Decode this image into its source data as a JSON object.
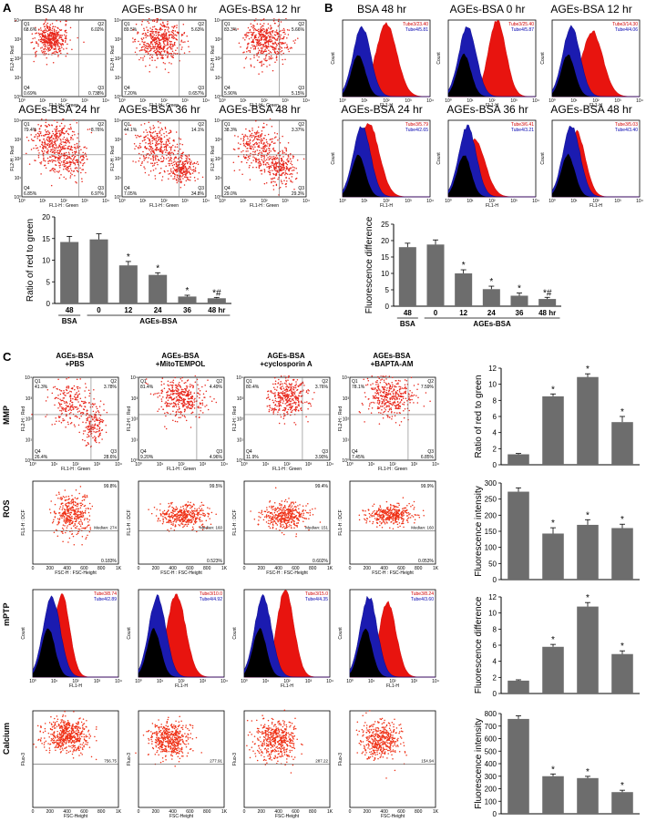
{
  "panel_a": {
    "label": "A",
    "plots": [
      {
        "title": "BSA 48 hr",
        "q1": "68.6%",
        "q2": "6.02%",
        "q3": "0.738%",
        "q4": "0.69%"
      },
      {
        "title": "AGEs-BSA 0 hr",
        "q1": "89.5%",
        "q2": "5.63%",
        "q3": "0.657%",
        "q4": "7.20%"
      },
      {
        "title": "AGEs-BSA 12 hr",
        "q1": "83.3%",
        "q2": "5.66%",
        "q3": "5.15%",
        "q4": "5.90%"
      },
      {
        "title": "AGEs-BSA 24 hr",
        "q1": "79.4%",
        "q2": "8.76%",
        "q3": "6.97%",
        "q4": "6.85%"
      },
      {
        "title": "AGEs-BSA 36 hr",
        "q1": "44.1%",
        "q2": "14.1%",
        "q3": "34.8%",
        "q4": "7.05%"
      },
      {
        "title": "AGEs-BSA 48 hr",
        "q1": "38.3%",
        "q2": "3.37%",
        "q3": "29.3%",
        "q4": "29.0%"
      }
    ],
    "xaxis": "FL1-H : Green",
    "yaxis": "FL2-H : Red"
  },
  "panel_b": {
    "label": "B",
    "plots": [
      {
        "title": "BSA 48 hr",
        "tube_a": "Tube3/23.40",
        "tube_b": "Tube4/5.81"
      },
      {
        "title": "AGEs-BSA 0 hr",
        "tube_a": "Tube3/25.40",
        "tube_b": "Tube4/5.87"
      },
      {
        "title": "AGEs-BSA 12 hr",
        "tube_a": "Tube3/14.30",
        "tube_b": "Tube4/4.06"
      },
      {
        "title": "AGEs-BSA 24 hr",
        "tube_a": "Tube3/5.79",
        "tube_b": "Tube4/2.65"
      },
      {
        "title": "AGEs-BSA 36 hr",
        "tube_a": "Tube3/6.41",
        "tube_b": "Tube4/3.21"
      },
      {
        "title": "AGEs-BSA 48 hr",
        "tube_a": "Tube3/5.03",
        "tube_b": "Tube4/3.40"
      }
    ],
    "xaxis": "FL1-H",
    "yaxis": "Count"
  },
  "panel_c": {
    "label": "C",
    "columns": [
      "AGEs-BSA\n+PBS",
      "AGEs-BSA\n+MitoTEMPOL",
      "AGEs-BSA\n+cyclosporin A",
      "AGEs-BSA\n+BAPTA-AM"
    ],
    "col_line1": [
      "AGEs-BSA",
      "AGEs-BSA",
      "AGEs-BSA",
      "AGEs-BSA"
    ],
    "col_line2": [
      "+PBS",
      "+MitoTEMPOL",
      "+cyclosporin A",
      "+BAPTA-AM"
    ],
    "rows": [
      "MMP",
      "ROS",
      "mPTP",
      "Calcium"
    ],
    "mmp": [
      {
        "q1": "41.3%",
        "q2": "3.78%",
        "q3": "28.6%",
        "q4": "26.4%"
      },
      {
        "q1": "81.4%",
        "q2": "4.49%",
        "q3": "4.96%",
        "q4": "9.20%"
      },
      {
        "q1": "80.4%",
        "q2": "3.76%",
        "q3": "3.90%",
        "q4": "11.9%"
      },
      {
        "q1": "78.1%",
        "q2": "7.59%",
        "q3": "6.85%",
        "q4": "7.45%"
      }
    ],
    "ros": [
      {
        "top": "99.8%",
        "bot": "0.183%",
        "median": "Median: 274"
      },
      {
        "top": "99.5%",
        "bot": "0.523%",
        "median": "Median: 160"
      },
      {
        "top": "99.4%",
        "bot": "0.602%",
        "median": "Median: 151"
      },
      {
        "top": "99.9%",
        "bot": "0.053%",
        "median": "Median: 160"
      }
    ],
    "mptp": [
      {
        "tube_a": "Tube3/8.74",
        "tube_b": "Tube4/2.89"
      },
      {
        "tube_a": "Tube3/10.0",
        "tube_b": "Tube4/4.92"
      },
      {
        "tube_a": "Tube3/15.0",
        "tube_b": "Tube4/4.35"
      },
      {
        "tube_a": "Tube3/8.24",
        "tube_b": "Tube4/3.60"
      }
    ],
    "calcium": [
      {
        "median": "756.75"
      },
      {
        "median": "277.91"
      },
      {
        "median": "287.22"
      },
      {
        "median": "154.94"
      }
    ],
    "scatter_x": "FSC-H : FSC-Height",
    "scatter_x2": "FSC-Height",
    "mmp_x": "FL1-H : Green",
    "mmp_y": "FL2-H : Red",
    "ros_y": "FL1-H : DCF",
    "hist_x": "FL1-H",
    "hist_y": "Count",
    "ca_y": "Fluo-3"
  },
  "chart_data": [
    {
      "type": "bar",
      "id": "a_bar",
      "categories": [
        "48",
        "0",
        "12",
        "24",
        "36",
        "48 hr"
      ],
      "values": [
        14.2,
        14.8,
        8.8,
        6.6,
        1.6,
        1.2
      ],
      "errors": [
        1.3,
        1.3,
        0.9,
        0.5,
        0.3,
        0.2
      ],
      "marks": [
        "",
        "",
        "*",
        "*",
        "*",
        "*#"
      ],
      "ylabel": "Ratio of red to green",
      "ylim": [
        0,
        20
      ],
      "yticks": [
        0,
        5,
        10,
        15,
        20
      ],
      "group_labels": [
        "BSA",
        "AGEs-BSA"
      ]
    },
    {
      "type": "bar",
      "id": "b_bar",
      "categories": [
        "48",
        "0",
        "12",
        "24",
        "36",
        "48 hr"
      ],
      "values": [
        18.0,
        18.8,
        10.0,
        5.2,
        3.2,
        2.2
      ],
      "errors": [
        1.2,
        1.4,
        1.1,
        0.9,
        0.8,
        0.5
      ],
      "marks": [
        "",
        "",
        "*",
        "*",
        "*",
        "*#"
      ],
      "ylabel": "Fluorescence difference",
      "ylim": [
        0,
        25
      ],
      "yticks": [
        0,
        5,
        10,
        15,
        20,
        25
      ],
      "group_labels": [
        "BSA",
        "AGEs-BSA"
      ]
    },
    {
      "type": "bar",
      "id": "c1_bar",
      "categories": [
        "PBS",
        "MitoTEMPOL",
        "cyclosporin A",
        "BAPTA-AM"
      ],
      "values": [
        1.3,
        8.5,
        10.9,
        5.3
      ],
      "errors": [
        0.1,
        0.3,
        0.4,
        0.7
      ],
      "marks": [
        "",
        "*",
        "*",
        "*"
      ],
      "ylabel": "Ratio of red to green",
      "ylim": [
        0,
        12
      ],
      "yticks": [
        0,
        2,
        4,
        6,
        8,
        10,
        12
      ]
    },
    {
      "type": "bar",
      "id": "c2_bar",
      "categories": [
        "PBS",
        "MitoTEMPOL",
        "cyclosporin A",
        "BAPTA-AM"
      ],
      "values": [
        273,
        143,
        170,
        160
      ],
      "errors": [
        12,
        18,
        16,
        12
      ],
      "marks": [
        "",
        "*",
        "*",
        "*"
      ],
      "ylabel": "Fluorescence intensity",
      "ylim": [
        0,
        300
      ],
      "yticks": [
        0,
        50,
        100,
        150,
        200,
        250,
        300
      ]
    },
    {
      "type": "bar",
      "id": "c3_bar",
      "categories": [
        "PBS",
        "MitoTEMPOL",
        "cyclosporin A",
        "BAPTA-AM"
      ],
      "values": [
        1.6,
        5.8,
        10.8,
        4.9
      ],
      "errors": [
        0.1,
        0.3,
        0.5,
        0.4
      ],
      "marks": [
        "",
        "*",
        "*",
        "*"
      ],
      "ylabel": "Fluorescence difference",
      "ylim": [
        0,
        12
      ],
      "yticks": [
        0,
        2,
        4,
        6,
        8,
        10,
        12
      ]
    },
    {
      "type": "bar",
      "id": "c4_bar",
      "categories": [
        "PBS",
        "MitoTEMPOL",
        "cyclosporin A",
        "BAPTA-AM"
      ],
      "values": [
        757,
        300,
        285,
        173
      ],
      "errors": [
        25,
        18,
        14,
        15
      ],
      "marks": [
        "",
        "*",
        "*",
        "*"
      ],
      "ylabel": "Fluorescence intensity",
      "ylim": [
        0,
        800
      ],
      "yticks": [
        0,
        100,
        200,
        300,
        400,
        500,
        600,
        700,
        800
      ]
    }
  ]
}
